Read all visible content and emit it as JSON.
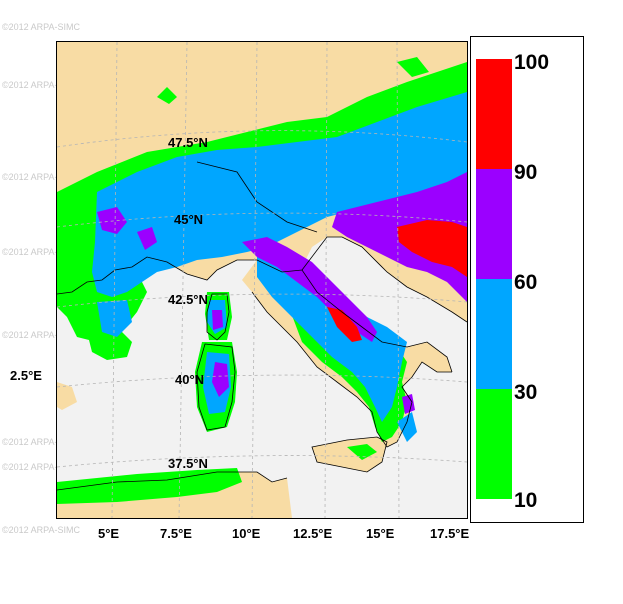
{
  "watermark": "©2012 ARPA-SIMC",
  "lat_labels": [
    "47.5°N",
    "45°N",
    "42.5°N",
    "40°N",
    "37.5°N"
  ],
  "lon_labels": [
    "2.5°E",
    "5°E",
    "7.5°E",
    "10°E",
    "12.5°E",
    "15°E",
    "17.5°E"
  ],
  "legend": {
    "ticks": [
      "100",
      "90",
      "60",
      "30",
      "10"
    ],
    "bands": [
      {
        "from": 90,
        "to": 100,
        "color": "#ff0000"
      },
      {
        "from": 60,
        "to": 90,
        "color": "#9b00ff"
      },
      {
        "from": 30,
        "to": 60,
        "color": "#00a6ff"
      },
      {
        "from": 10,
        "to": 30,
        "color": "#00ff00"
      }
    ]
  },
  "colors": {
    "land": "#f8dca4",
    "sea": "#f2f2f2",
    "band_10_30": "#00ff00",
    "band_30_60": "#00a6ff",
    "band_60_90": "#9b00ff",
    "band_90_100": "#ff0000"
  }
}
